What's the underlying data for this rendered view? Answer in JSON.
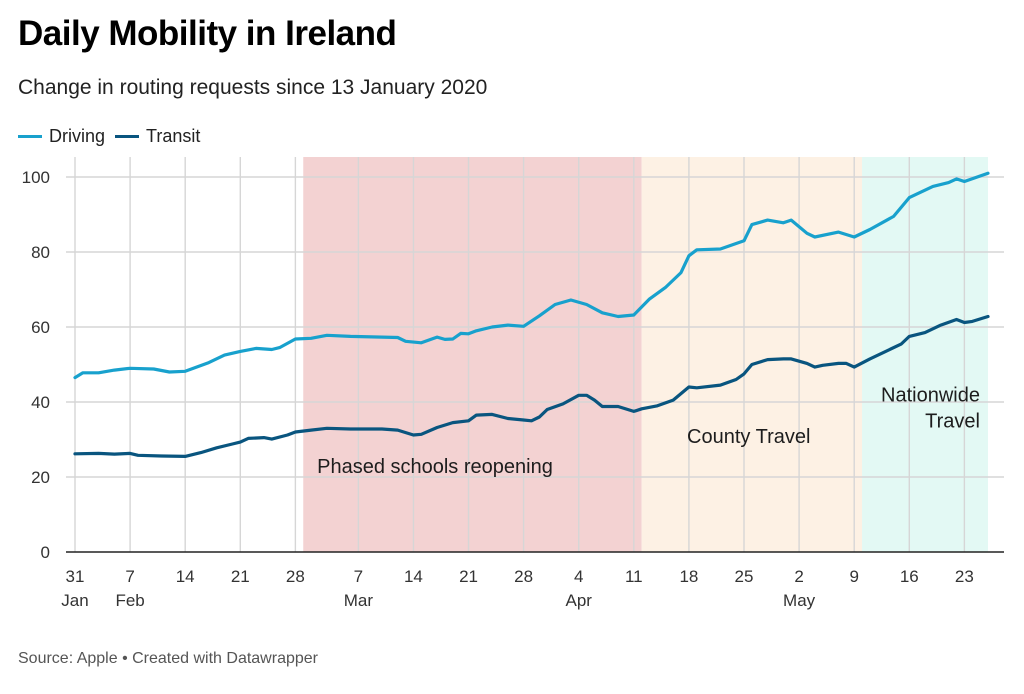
{
  "header": {
    "title": "Daily Mobility in Ireland",
    "subtitle": "Change in routing requests since 13 January 2020"
  },
  "legend": [
    {
      "label": "Driving",
      "color": "#18a1cd"
    },
    {
      "label": "Transit",
      "color": "#09557f"
    }
  ],
  "footer": {
    "text": "Source: Apple • Created with Datawrapper"
  },
  "chart_data": {
    "type": "line",
    "title": "Daily Mobility in Ireland",
    "subtitle": "Change in routing requests since 13 January 2020",
    "xlabel": "",
    "ylabel": "",
    "x_start": "2020-01-31",
    "x_end": "2020-05-26",
    "ylim": [
      0,
      100
    ],
    "y_ticks": [
      0,
      20,
      40,
      60,
      80,
      100
    ],
    "grid": true,
    "legend_position": "top-left",
    "x_ticks": [
      {
        "date": "2020-01-31",
        "day": "31",
        "month": "Jan"
      },
      {
        "date": "2020-02-07",
        "day": "7",
        "month": "Feb"
      },
      {
        "date": "2020-02-14",
        "day": "14",
        "month": ""
      },
      {
        "date": "2020-02-21",
        "day": "21",
        "month": ""
      },
      {
        "date": "2020-02-28",
        "day": "28",
        "month": ""
      },
      {
        "date": "2020-03-07",
        "day": "7",
        "month": "Mar"
      },
      {
        "date": "2020-03-14",
        "day": "14",
        "month": ""
      },
      {
        "date": "2020-03-21",
        "day": "21",
        "month": ""
      },
      {
        "date": "2020-03-28",
        "day": "28",
        "month": ""
      },
      {
        "date": "2020-04-04",
        "day": "4",
        "month": "Apr"
      },
      {
        "date": "2020-04-11",
        "day": "11",
        "month": ""
      },
      {
        "date": "2020-04-18",
        "day": "18",
        "month": ""
      },
      {
        "date": "2020-04-25",
        "day": "25",
        "month": ""
      },
      {
        "date": "2020-05-02",
        "day": "2",
        "month": "May"
      },
      {
        "date": "2020-05-09",
        "day": "9",
        "month": ""
      },
      {
        "date": "2020-05-16",
        "day": "16",
        "month": ""
      },
      {
        "date": "2020-05-23",
        "day": "23",
        "month": ""
      }
    ],
    "ranges": [
      {
        "label": "Phased schools reopening",
        "start": "2020-02-29",
        "end": "2020-04-12",
        "color": "#f3d2d2"
      },
      {
        "label": "County Travel",
        "start": "2020-04-12",
        "end": "2020-05-10",
        "color": "#fdf1e4"
      },
      {
        "label": "Nationwide Travel",
        "start": "2020-05-10",
        "end": "2020-05-26",
        "color": "#e3f9f4"
      }
    ],
    "annotations": [
      {
        "text": "Phased schools reopening",
        "date": "2020-03-01",
        "y": 23,
        "align": "left"
      },
      {
        "text": "County Travel",
        "date": "2020-04-17",
        "y": 31,
        "align": "left"
      },
      {
        "text": "Nationwide Travel",
        "date": "2020-05-26",
        "y": 41,
        "align": "right"
      }
    ],
    "series": [
      {
        "name": "Driving",
        "color": "#18a1cd",
        "points": [
          [
            "2020-01-31",
            46.5
          ],
          [
            "2020-02-01",
            47.8
          ],
          [
            "2020-02-03",
            47.8
          ],
          [
            "2020-02-05",
            48.5
          ],
          [
            "2020-02-07",
            49.0
          ],
          [
            "2020-02-10",
            48.8
          ],
          [
            "2020-02-12",
            48.0
          ],
          [
            "2020-02-14",
            48.2
          ],
          [
            "2020-02-17",
            50.5
          ],
          [
            "2020-02-19",
            52.5
          ],
          [
            "2020-02-21",
            53.5
          ],
          [
            "2020-02-23",
            54.3
          ],
          [
            "2020-02-25",
            54.0
          ],
          [
            "2020-02-26",
            54.5
          ],
          [
            "2020-02-28",
            56.8
          ],
          [
            "2020-03-01",
            57.0
          ],
          [
            "2020-03-03",
            57.8
          ],
          [
            "2020-03-06",
            57.5
          ],
          [
            "2020-03-10",
            57.3
          ],
          [
            "2020-03-12",
            57.2
          ],
          [
            "2020-03-13",
            56.2
          ],
          [
            "2020-03-15",
            55.8
          ],
          [
            "2020-03-17",
            57.3
          ],
          [
            "2020-03-18",
            56.7
          ],
          [
            "2020-03-19",
            56.8
          ],
          [
            "2020-03-20",
            58.3
          ],
          [
            "2020-03-21",
            58.2
          ],
          [
            "2020-03-22",
            59.0
          ],
          [
            "2020-03-24",
            60.0
          ],
          [
            "2020-03-26",
            60.5
          ],
          [
            "2020-03-28",
            60.2
          ],
          [
            "2020-03-30",
            63.0
          ],
          [
            "2020-04-01",
            66.0
          ],
          [
            "2020-04-03",
            67.2
          ],
          [
            "2020-04-05",
            66.0
          ],
          [
            "2020-04-07",
            63.8
          ],
          [
            "2020-04-09",
            62.8
          ],
          [
            "2020-04-11",
            63.2
          ],
          [
            "2020-04-13",
            67.5
          ],
          [
            "2020-04-15",
            70.5
          ],
          [
            "2020-04-17",
            74.5
          ],
          [
            "2020-04-18",
            79.0
          ],
          [
            "2020-04-19",
            80.6
          ],
          [
            "2020-04-22",
            80.8
          ],
          [
            "2020-04-25",
            83.0
          ],
          [
            "2020-04-26",
            87.3
          ],
          [
            "2020-04-28",
            88.5
          ],
          [
            "2020-04-30",
            87.8
          ],
          [
            "2020-05-01",
            88.5
          ],
          [
            "2020-05-03",
            85.0
          ],
          [
            "2020-05-04",
            84.0
          ],
          [
            "2020-05-07",
            85.3
          ],
          [
            "2020-05-09",
            84.0
          ],
          [
            "2020-05-11",
            86.0
          ],
          [
            "2020-05-14",
            89.5
          ],
          [
            "2020-05-16",
            94.5
          ],
          [
            "2020-05-19",
            97.5
          ],
          [
            "2020-05-21",
            98.5
          ],
          [
            "2020-05-22",
            99.5
          ],
          [
            "2020-05-23",
            98.8
          ],
          [
            "2020-05-26",
            101.0
          ]
        ]
      },
      {
        "name": "Transit",
        "color": "#09557f",
        "points": [
          [
            "2020-01-31",
            26.2
          ],
          [
            "2020-02-03",
            26.3
          ],
          [
            "2020-02-05",
            26.1
          ],
          [
            "2020-02-07",
            26.3
          ],
          [
            "2020-02-08",
            25.8
          ],
          [
            "2020-02-11",
            25.6
          ],
          [
            "2020-02-14",
            25.5
          ],
          [
            "2020-02-16",
            26.5
          ],
          [
            "2020-02-18",
            27.8
          ],
          [
            "2020-02-20",
            28.8
          ],
          [
            "2020-02-21",
            29.3
          ],
          [
            "2020-02-22",
            30.3
          ],
          [
            "2020-02-24",
            30.5
          ],
          [
            "2020-02-25",
            30.1
          ],
          [
            "2020-02-27",
            31.2
          ],
          [
            "2020-02-28",
            32.0
          ],
          [
            "2020-03-01",
            32.5
          ],
          [
            "2020-03-03",
            33.0
          ],
          [
            "2020-03-06",
            32.8
          ],
          [
            "2020-03-10",
            32.8
          ],
          [
            "2020-03-12",
            32.5
          ],
          [
            "2020-03-14",
            31.2
          ],
          [
            "2020-03-15",
            31.4
          ],
          [
            "2020-03-17",
            33.2
          ],
          [
            "2020-03-19",
            34.5
          ],
          [
            "2020-03-21",
            35.0
          ],
          [
            "2020-03-22",
            36.5
          ],
          [
            "2020-03-24",
            36.7
          ],
          [
            "2020-03-26",
            35.6
          ],
          [
            "2020-03-28",
            35.2
          ],
          [
            "2020-03-29",
            35.0
          ],
          [
            "2020-03-30",
            36.0
          ],
          [
            "2020-03-31",
            38.0
          ],
          [
            "2020-04-02",
            39.5
          ],
          [
            "2020-04-04",
            41.8
          ],
          [
            "2020-04-05",
            41.8
          ],
          [
            "2020-04-06",
            40.5
          ],
          [
            "2020-04-07",
            38.8
          ],
          [
            "2020-04-09",
            38.8
          ],
          [
            "2020-04-11",
            37.5
          ],
          [
            "2020-04-12",
            38.2
          ],
          [
            "2020-04-14",
            39.0
          ],
          [
            "2020-04-16",
            40.5
          ],
          [
            "2020-04-18",
            44.0
          ],
          [
            "2020-04-19",
            43.8
          ],
          [
            "2020-04-22",
            44.5
          ],
          [
            "2020-04-24",
            46.0
          ],
          [
            "2020-04-25",
            47.5
          ],
          [
            "2020-04-26",
            50.0
          ],
          [
            "2020-04-28",
            51.3
          ],
          [
            "2020-04-30",
            51.5
          ],
          [
            "2020-05-01",
            51.5
          ],
          [
            "2020-05-03",
            50.3
          ],
          [
            "2020-05-04",
            49.3
          ],
          [
            "2020-05-05",
            49.8
          ],
          [
            "2020-05-07",
            50.3
          ],
          [
            "2020-05-08",
            50.3
          ],
          [
            "2020-05-09",
            49.3
          ],
          [
            "2020-05-11",
            51.5
          ],
          [
            "2020-05-13",
            53.5
          ],
          [
            "2020-05-15",
            55.5
          ],
          [
            "2020-05-16",
            57.5
          ],
          [
            "2020-05-18",
            58.5
          ],
          [
            "2020-05-20",
            60.5
          ],
          [
            "2020-05-22",
            62.0
          ],
          [
            "2020-05-23",
            61.2
          ],
          [
            "2020-05-24",
            61.5
          ],
          [
            "2020-05-26",
            62.8
          ]
        ]
      }
    ]
  }
}
